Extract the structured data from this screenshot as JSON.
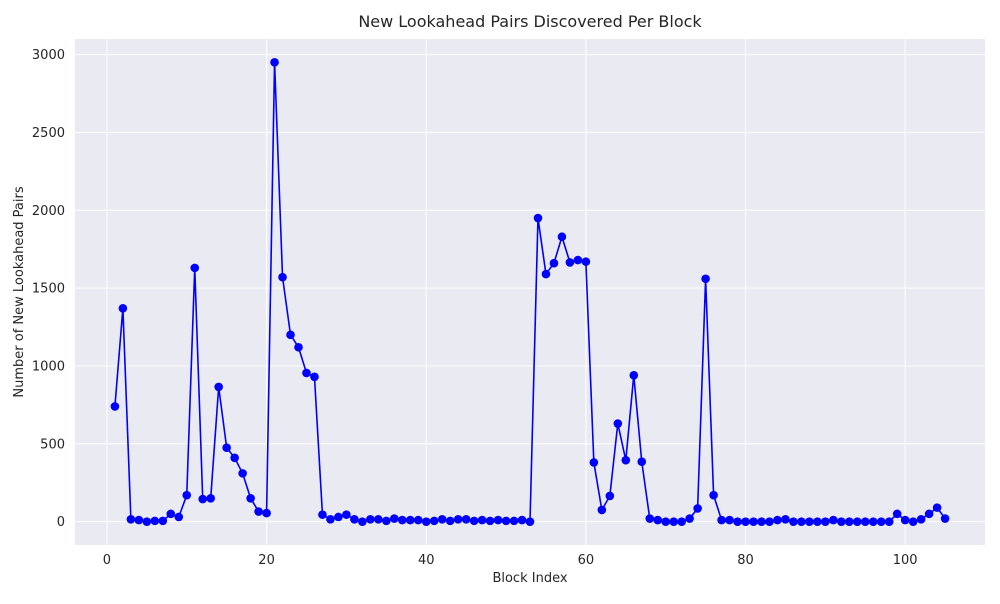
{
  "chart_data": {
    "type": "line",
    "title": "New Lookahead Pairs Discovered Per Block",
    "xlabel": "Block Index",
    "ylabel": "Number of New Lookahead Pairs",
    "xlim": [
      -4,
      110
    ],
    "ylim": [
      -150,
      3100
    ],
    "xticks": [
      0,
      20,
      40,
      60,
      80,
      100
    ],
    "yticks": [
      0,
      500,
      1000,
      1500,
      2000,
      2500,
      3000
    ],
    "grid": true,
    "legend": "none",
    "series": [
      {
        "color": "#0000ff",
        "marker": "circle",
        "x": [
          1,
          2,
          3,
          4,
          5,
          6,
          7,
          8,
          9,
          10,
          11,
          12,
          13,
          14,
          15,
          16,
          17,
          18,
          19,
          20,
          21,
          22,
          23,
          24,
          25,
          26,
          27,
          28,
          29,
          30,
          31,
          32,
          33,
          34,
          35,
          36,
          37,
          38,
          39,
          40,
          41,
          42,
          43,
          44,
          45,
          46,
          47,
          48,
          49,
          50,
          51,
          52,
          53,
          54,
          55,
          56,
          57,
          58,
          59,
          60,
          61,
          62,
          63,
          64,
          65,
          66,
          67,
          68,
          69,
          70,
          71,
          72,
          73,
          74,
          75,
          76,
          77,
          78,
          79,
          80,
          81,
          82,
          83,
          84,
          85,
          86,
          87,
          88,
          89,
          90,
          91,
          92,
          93,
          94,
          95,
          96,
          97,
          98,
          99,
          100,
          101,
          102,
          103,
          104,
          105
        ],
        "y": [
          740,
          1370,
          15,
          10,
          0,
          5,
          5,
          50,
          30,
          170,
          1630,
          145,
          150,
          865,
          475,
          410,
          310,
          150,
          65,
          55,
          2950,
          1570,
          1200,
          1120,
          955,
          930,
          45,
          15,
          30,
          45,
          15,
          0,
          15,
          15,
          5,
          20,
          10,
          10,
          10,
          0,
          5,
          15,
          5,
          15,
          15,
          5,
          10,
          5,
          10,
          5,
          5,
          10,
          0,
          1950,
          1590,
          1660,
          1830,
          1665,
          1680,
          1670,
          380,
          75,
          165,
          630,
          395,
          940,
          385,
          20,
          10,
          0,
          0,
          0,
          20,
          85,
          1560,
          170,
          10,
          10,
          0,
          0,
          0,
          0,
          0,
          10,
          15,
          0,
          0,
          0,
          0,
          0,
          10,
          0,
          0,
          0,
          0,
          0,
          0,
          0,
          50,
          10,
          0,
          15,
          50,
          90,
          20
        ]
      }
    ]
  }
}
